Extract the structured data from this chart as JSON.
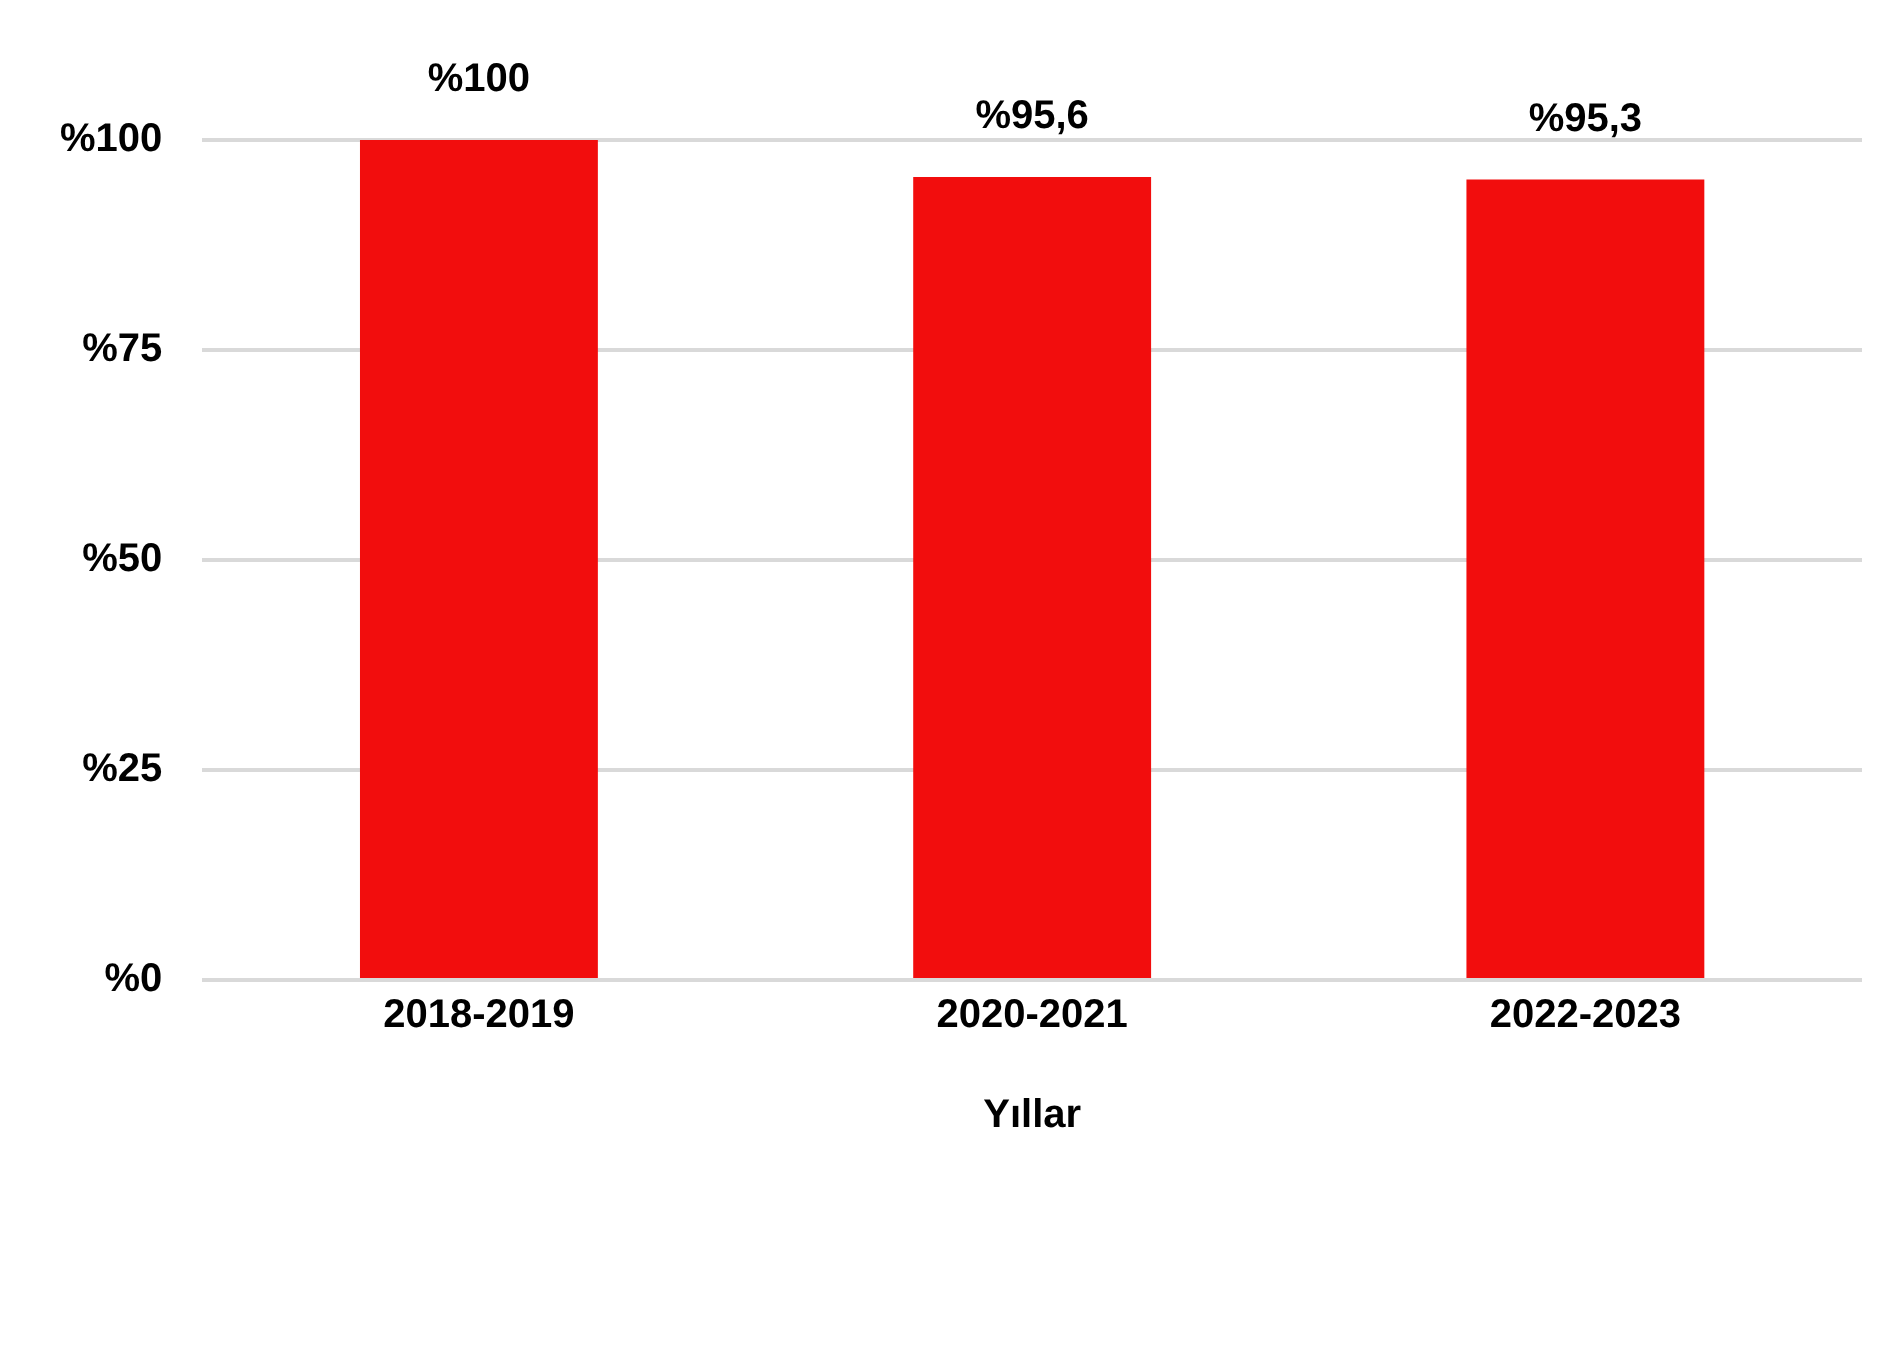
{
  "chart_data": {
    "type": "bar",
    "xlabel": "Yıllar",
    "categories": [
      "2018-2019",
      "2020-2021",
      "2022-2023"
    ],
    "values": [
      100,
      95.6,
      95.3
    ],
    "color": "#f20d0d",
    "value_labels": [
      "%100",
      "%95,6",
      "%95,3"
    ],
    "ylim": [
      0,
      100
    ],
    "yticks": [
      {
        "value": 0,
        "label": "%0"
      },
      {
        "value": 25,
        "label": "%25"
      },
      {
        "value": 50,
        "label": "%50"
      },
      {
        "value": 75,
        "label": "%75"
      },
      {
        "value": 100,
        "label": "%100"
      }
    ],
    "grid": "y",
    "legend": false
  }
}
